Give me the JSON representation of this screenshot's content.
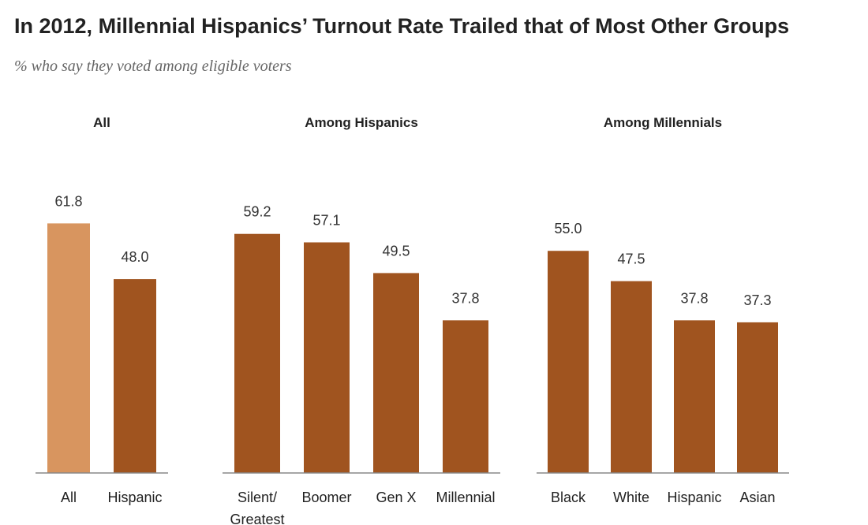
{
  "title": "In 2012, Millennial Hispanics’ Turnout Rate Trailed that of Most Other Groups",
  "subtitle": "% who say they voted among eligible voters",
  "chart_data": [
    {
      "type": "bar",
      "title": "All",
      "categories": [
        "All",
        "Hispanic"
      ],
      "values": [
        61.8,
        48.0
      ],
      "value_labels": [
        "61.8",
        "48.0"
      ],
      "colors": [
        "#d8955f",
        "#a0541f"
      ],
      "ylim": [
        0,
        65
      ]
    },
    {
      "type": "bar",
      "title": "Among Hispanics",
      "categories": [
        "Silent/ Greatest",
        "Boomer",
        "Gen X",
        "Millennial"
      ],
      "values": [
        59.2,
        57.1,
        49.5,
        37.8
      ],
      "value_labels": [
        "59.2",
        "57.1",
        "49.5",
        "37.8"
      ],
      "color": "#a0541f",
      "ylim": [
        0,
        65
      ]
    },
    {
      "type": "bar",
      "title": "Among Millennials",
      "categories": [
        "Black",
        "White",
        "Hispanic",
        "Asian"
      ],
      "values": [
        55.0,
        47.5,
        37.8,
        37.3
      ],
      "value_labels": [
        "55.0",
        "47.5",
        "37.8",
        "37.3"
      ],
      "color": "#a0541f",
      "ylim": [
        0,
        65
      ]
    }
  ]
}
